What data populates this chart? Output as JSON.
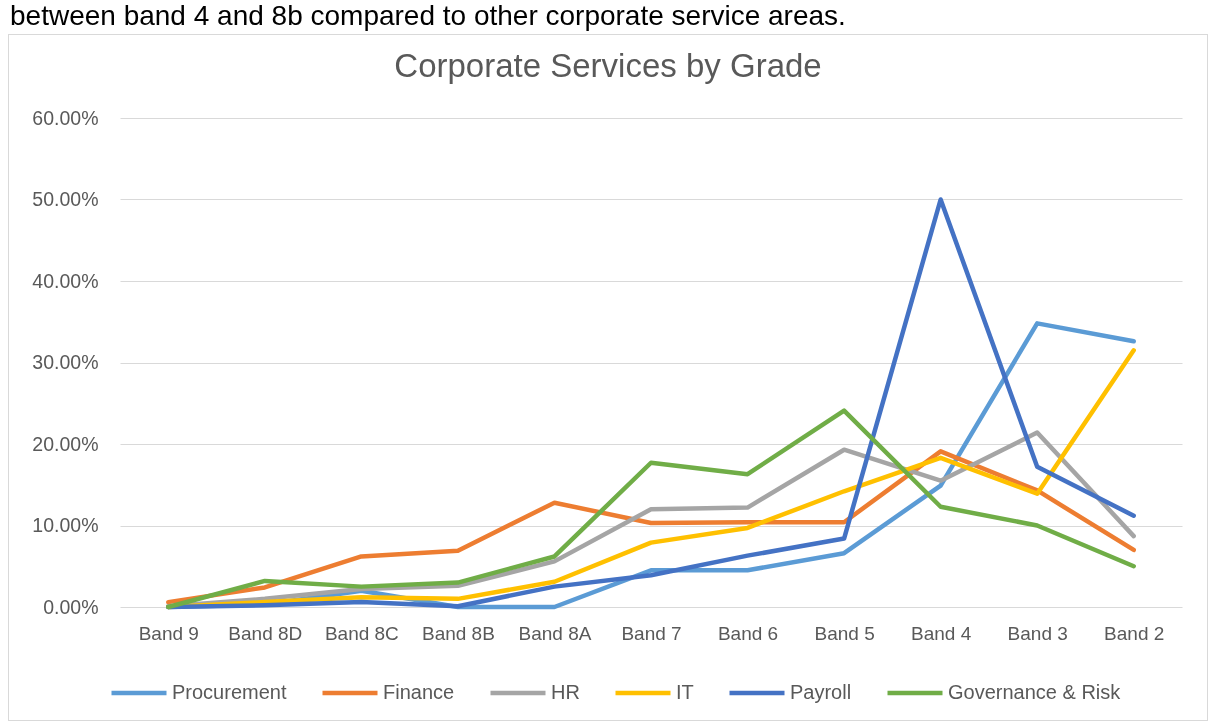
{
  "chart_data": {
    "type": "line",
    "title": "Corporate Services by Grade",
    "annotations": [
      "between band 4 and 8b compared to other corporate service areas."
    ],
    "categories": [
      "Band 9",
      "Band 8D",
      "Band 8C",
      "Band 8B",
      "Band 8A",
      "Band 7",
      "Band 6",
      "Band 5",
      "Band 4",
      "Band 3",
      "Band 2"
    ],
    "series": [
      {
        "name": "Procurement",
        "color": "#5b9bd5",
        "values": [
          0,
          0.3,
          2.0,
          0,
          0,
          4.5,
          4.5,
          6.6,
          14.9,
          34.8,
          32.6
        ]
      },
      {
        "name": "Finance",
        "color": "#ed7d31",
        "values": [
          0.6,
          2.4,
          6.2,
          6.9,
          12.8,
          10.3,
          10.4,
          10.4,
          19.1,
          14.3,
          7.0
        ]
      },
      {
        "name": "HR",
        "color": "#a5a5a5",
        "values": [
          0.1,
          1.0,
          2.2,
          2.6,
          5.6,
          12.0,
          12.2,
          19.3,
          15.5,
          21.4,
          8.7
        ]
      },
      {
        "name": "IT",
        "color": "#ffc000",
        "values": [
          0,
          0.6,
          1.2,
          1.0,
          3.1,
          7.9,
          9.7,
          14.2,
          18.3,
          13.9,
          31.5
        ]
      },
      {
        "name": "Payroll",
        "color": "#4472c4",
        "values": [
          0,
          0.2,
          0.6,
          0.1,
          2.5,
          3.9,
          6.3,
          8.4,
          50.0,
          17.2,
          11.2
        ]
      },
      {
        "name": "Governance & Risk",
        "color": "#70ad47",
        "values": [
          0,
          3.2,
          2.5,
          3.0,
          6.2,
          17.7,
          16.3,
          24.1,
          12.3,
          10.0,
          5.0
        ]
      }
    ],
    "ylim": [
      0,
      60
    ],
    "yticks": [
      {
        "value": 0,
        "label": "0.00%"
      },
      {
        "value": 10,
        "label": "10.00%"
      },
      {
        "value": 20,
        "label": "20.00%"
      },
      {
        "value": 30,
        "label": "30.00%"
      },
      {
        "value": 40,
        "label": "40.00%"
      },
      {
        "value": 50,
        "label": "50.00%"
      },
      {
        "value": 60,
        "label": "60.00%"
      }
    ],
    "grid": "y",
    "legend": "bottom",
    "marker": "none",
    "line_style": "solid"
  }
}
